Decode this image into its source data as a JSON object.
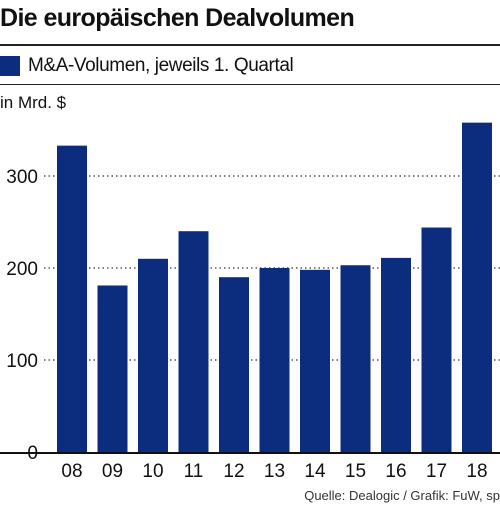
{
  "header": {
    "title": "Die europäischen Dealvolumen"
  },
  "footer": {
    "source": "Quelle: Dealogic / Grafik: FuW, sp"
  },
  "colors": {
    "bar": "#0c2c7e",
    "grid": "#333333"
  },
  "chart_data": {
    "type": "bar",
    "title": "Die europäischen Dealvolumen",
    "unit_label": "in Mrd. $",
    "categories": [
      "08",
      "09",
      "10",
      "11",
      "12",
      "13",
      "14",
      "15",
      "16",
      "17",
      "18"
    ],
    "series": [
      {
        "name": "M&A-Volumen, jeweils 1. Quartal",
        "values": [
          333,
          181,
          210,
          240,
          190,
          200,
          198,
          203,
          211,
          244,
          358
        ]
      }
    ],
    "ylim": [
      0,
      380
    ],
    "yticks": [
      0,
      100,
      200,
      300
    ],
    "grid": true,
    "legend": "top-left"
  }
}
